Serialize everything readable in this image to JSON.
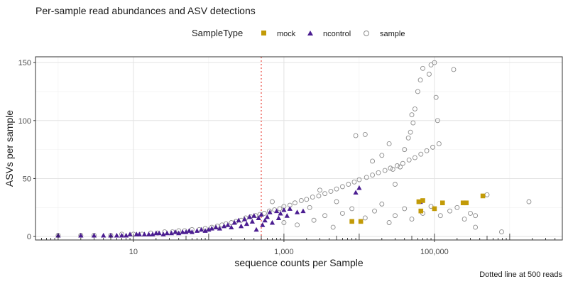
{
  "chart_data": {
    "type": "scatter",
    "title": "Per-sample read abundances and ASV detections",
    "xlabel": "sequence counts per Sample",
    "ylabel": "ASVs per sample",
    "caption": "Dotted line at 500 reads",
    "x_scale": "log10",
    "xlim": [
      0.5,
      5000000
    ],
    "ylim": [
      -3,
      155
    ],
    "x_ticks": [
      10,
      1000,
      100000
    ],
    "x_tick_labels": [
      "10",
      "1,000",
      "100,000"
    ],
    "y_ticks": [
      0,
      50,
      100,
      150
    ],
    "y_tick_labels": [
      "0",
      "50",
      "100",
      "150"
    ],
    "grid": true,
    "vline": {
      "x": 500,
      "style": "dotted",
      "color": "#e8453c"
    },
    "legend": {
      "title": "SampleType",
      "position": "top",
      "entries": [
        {
          "label": "mock",
          "shape": "square",
          "color": "#c29a07"
        },
        {
          "label": "ncontrol",
          "shape": "triangle",
          "color": "#4b1d91"
        },
        {
          "label": "sample",
          "shape": "open-circle",
          "color": "#8c8c8c"
        }
      ]
    },
    "series": [
      {
        "name": "mock",
        "shape": "square",
        "color": "#c29a07",
        "points": [
          [
            8000,
            13
          ],
          [
            10500,
            13
          ],
          [
            62000,
            30
          ],
          [
            66000,
            22
          ],
          [
            70000,
            31
          ],
          [
            100000,
            24
          ],
          [
            128000,
            29
          ],
          [
            240000,
            29
          ],
          [
            265000,
            29
          ],
          [
            440000,
            35
          ]
        ]
      },
      {
        "name": "ncontrol",
        "shape": "triangle",
        "color": "#4b1d91",
        "points": [
          [
            1,
            1
          ],
          [
            2,
            1
          ],
          [
            3,
            1
          ],
          [
            4,
            1
          ],
          [
            5,
            1
          ],
          [
            6,
            1
          ],
          [
            7,
            1
          ],
          [
            8,
            1
          ],
          [
            9,
            2
          ],
          [
            11,
            2
          ],
          [
            12,
            2
          ],
          [
            14,
            2
          ],
          [
            16,
            2
          ],
          [
            18,
            2
          ],
          [
            20,
            3
          ],
          [
            22,
            3
          ],
          [
            25,
            2
          ],
          [
            28,
            3
          ],
          [
            32,
            3
          ],
          [
            36,
            4
          ],
          [
            40,
            3
          ],
          [
            45,
            4
          ],
          [
            50,
            4
          ],
          [
            55,
            5
          ],
          [
            60,
            4
          ],
          [
            70,
            5
          ],
          [
            80,
            6
          ],
          [
            90,
            5
          ],
          [
            100,
            6
          ],
          [
            110,
            7
          ],
          [
            125,
            8
          ],
          [
            140,
            7
          ],
          [
            160,
            9
          ],
          [
            180,
            10
          ],
          [
            200,
            8
          ],
          [
            220,
            12
          ],
          [
            250,
            14
          ],
          [
            270,
            9
          ],
          [
            300,
            15
          ],
          [
            320,
            11
          ],
          [
            350,
            17
          ],
          [
            380,
            13
          ],
          [
            400,
            18
          ],
          [
            430,
            6
          ],
          [
            460,
            16
          ],
          [
            500,
            19
          ],
          [
            520,
            10
          ],
          [
            560,
            14
          ],
          [
            600,
            17
          ],
          [
            650,
            21
          ],
          [
            700,
            12
          ],
          [
            800,
            22
          ],
          [
            850,
            16
          ],
          [
            900,
            20
          ],
          [
            1000,
            23
          ],
          [
            1100,
            18
          ],
          [
            1200,
            24
          ],
          [
            1500,
            21
          ],
          [
            1800,
            22
          ],
          [
            9000,
            38
          ],
          [
            10000,
            42
          ],
          [
            65000,
            30
          ]
        ]
      },
      {
        "name": "sample",
        "shape": "open-circle",
        "color": "#8c8c8c",
        "points": [
          [
            1,
            1
          ],
          [
            2,
            1
          ],
          [
            3,
            1
          ],
          [
            5,
            1
          ],
          [
            7,
            2
          ],
          [
            10,
            2
          ],
          [
            13,
            2
          ],
          [
            17,
            3
          ],
          [
            21,
            3
          ],
          [
            26,
            4
          ],
          [
            33,
            4
          ],
          [
            40,
            5
          ],
          [
            48,
            5
          ],
          [
            60,
            6
          ],
          [
            75,
            6
          ],
          [
            90,
            7
          ],
          [
            110,
            8
          ],
          [
            130,
            9
          ],
          [
            150,
            10
          ],
          [
            170,
            11
          ],
          [
            200,
            12
          ],
          [
            230,
            13
          ],
          [
            270,
            14
          ],
          [
            310,
            16
          ],
          [
            360,
            17
          ],
          [
            420,
            18
          ],
          [
            480,
            19
          ],
          [
            550,
            20
          ],
          [
            640,
            22
          ],
          [
            750,
            23
          ],
          [
            880,
            24
          ],
          [
            1000,
            26
          ],
          [
            1200,
            27
          ],
          [
            1400,
            29
          ],
          [
            1700,
            31
          ],
          [
            2000,
            32
          ],
          [
            2400,
            34
          ],
          [
            2900,
            35
          ],
          [
            3500,
            37
          ],
          [
            4200,
            39
          ],
          [
            5000,
            41
          ],
          [
            6000,
            43
          ],
          [
            7200,
            45
          ],
          [
            8600,
            47
          ],
          [
            10000,
            49
          ],
          [
            12500,
            51
          ],
          [
            15000,
            53
          ],
          [
            18000,
            55
          ],
          [
            22000,
            57
          ],
          [
            26000,
            59
          ],
          [
            32000,
            61
          ],
          [
            38000,
            63
          ],
          [
            46000,
            66
          ],
          [
            55000,
            68
          ],
          [
            66000,
            71
          ],
          [
            79000,
            74
          ],
          [
            95000,
            77
          ],
          [
            115000,
            80
          ],
          [
            1500,
            10
          ],
          [
            2500,
            14
          ],
          [
            3500,
            18
          ],
          [
            4500,
            8
          ],
          [
            6000,
            20
          ],
          [
            8000,
            24
          ],
          [
            12000,
            16
          ],
          [
            16000,
            22
          ],
          [
            20000,
            28
          ],
          [
            25000,
            12
          ],
          [
            30000,
            18
          ],
          [
            40000,
            24
          ],
          [
            50000,
            15
          ],
          [
            70000,
            20
          ],
          [
            90000,
            26
          ],
          [
            120000,
            18
          ],
          [
            160000,
            22
          ],
          [
            200000,
            25
          ],
          [
            250000,
            15
          ],
          [
            300000,
            20
          ],
          [
            350000,
            8
          ],
          [
            30000,
            45
          ],
          [
            35000,
            60
          ],
          [
            40000,
            75
          ],
          [
            45000,
            85
          ],
          [
            48000,
            90
          ],
          [
            50000,
            105
          ],
          [
            52000,
            98
          ],
          [
            55000,
            110
          ],
          [
            60000,
            125
          ],
          [
            65000,
            135
          ],
          [
            70000,
            145
          ],
          [
            85000,
            140
          ],
          [
            90000,
            148
          ],
          [
            100000,
            150
          ],
          [
            105000,
            120
          ],
          [
            110000,
            100
          ],
          [
            180000,
            144
          ],
          [
            9000,
            87
          ],
          [
            12000,
            88
          ],
          [
            15000,
            65
          ],
          [
            20000,
            70
          ],
          [
            25000,
            80
          ],
          [
            28000,
            58
          ],
          [
            350000,
            18
          ],
          [
            500000,
            36
          ],
          [
            1800000,
            30
          ],
          [
            780000,
            4
          ],
          [
            5000,
            30
          ],
          [
            3000,
            40
          ],
          [
            1000,
            12
          ],
          [
            700,
            30
          ],
          [
            2200,
            25
          ]
        ]
      }
    ]
  }
}
